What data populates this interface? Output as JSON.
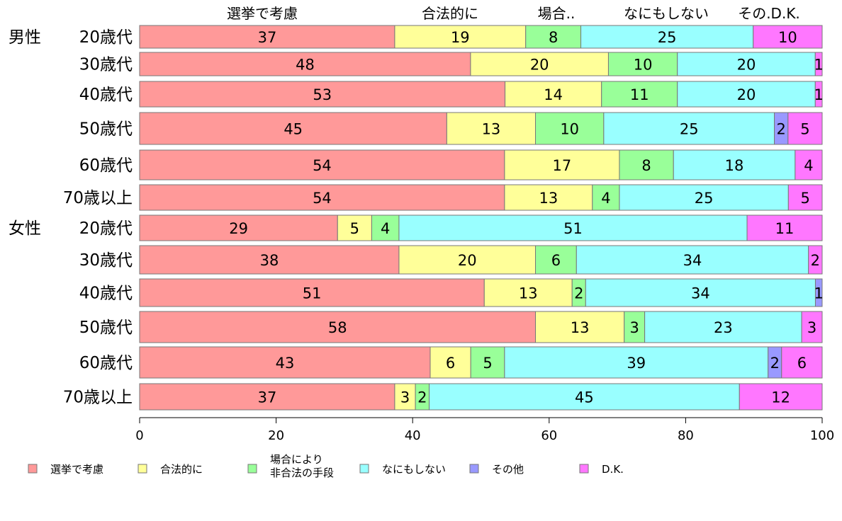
{
  "chart_data": {
    "type": "bar",
    "orientation": "horizontal",
    "stacked": true,
    "xlim": [
      0,
      100
    ],
    "x_ticks": [
      "0",
      "20",
      "40",
      "60",
      "80",
      "100"
    ],
    "top_labels": [
      "選挙で考慮",
      "合法的に",
      "場合..",
      "なにもしない",
      "その.D.K."
    ],
    "group_labels": [
      "男性",
      "女性"
    ],
    "categories": [
      "20歳代",
      "30歳代",
      "40歳代",
      "50歳代",
      "60歳代",
      "70歳以上",
      "20歳代",
      "30歳代",
      "40歳代",
      "50歳代",
      "60歳代",
      "70歳以上"
    ],
    "series": [
      {
        "name": "選挙で考慮",
        "color": "#ff9999",
        "values": [
          37,
          48,
          53,
          45,
          54,
          54,
          29,
          38,
          51,
          58,
          43,
          37
        ]
      },
      {
        "name": "合法的に",
        "color": "#ffff99",
        "values": [
          19,
          20,
          14,
          13,
          17,
          13,
          5,
          20,
          13,
          13,
          6,
          3
        ]
      },
      {
        "name": "場合により\n非合法の手段",
        "color": "#99ff99",
        "values": [
          8,
          10,
          11,
          10,
          8,
          4,
          4,
          6,
          2,
          3,
          5,
          2
        ]
      },
      {
        "name": "なにもしない",
        "color": "#99ffff",
        "values": [
          25,
          20,
          20,
          25,
          18,
          25,
          51,
          34,
          34,
          23,
          39,
          45
        ]
      },
      {
        "name": "その他",
        "color": "#9999ff",
        "values": [
          0,
          0,
          0,
          2,
          0,
          0,
          0,
          0,
          1,
          0,
          2,
          0
        ]
      },
      {
        "name": "D.K.",
        "color": "#ff77ff",
        "values": [
          10,
          1,
          1,
          5,
          4,
          5,
          11,
          2,
          0,
          3,
          6,
          12
        ]
      }
    ],
    "data_labels": [
      [
        "37",
        "19",
        "8",
        "25",
        "",
        "10"
      ],
      [
        "48",
        "20",
        "10",
        "20",
        "",
        "1"
      ],
      [
        "53",
        "14",
        "11",
        "20",
        "",
        "1"
      ],
      [
        "45",
        "13",
        "10",
        "25",
        "2",
        "5"
      ],
      [
        "54",
        "17",
        "8",
        "18",
        "",
        "4"
      ],
      [
        "54",
        "13",
        "4",
        "25",
        "",
        "5"
      ],
      [
        "29",
        "5",
        "4",
        "51",
        "",
        "11"
      ],
      [
        "38",
        "20",
        "6",
        "34",
        "",
        "2"
      ],
      [
        "51",
        "13",
        "2",
        "34",
        "1",
        ""
      ],
      [
        "58",
        "13",
        "3",
        "23",
        "",
        "3"
      ],
      [
        "43",
        "6",
        "5",
        "39",
        "2",
        "6"
      ],
      [
        "37",
        "3",
        "2",
        "45",
        "",
        "12"
      ]
    ],
    "legend_placement": "bottom",
    "grid": false
  }
}
